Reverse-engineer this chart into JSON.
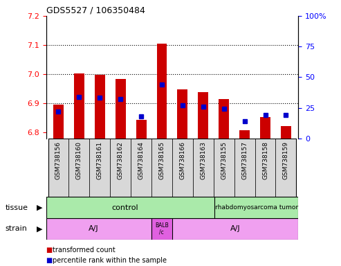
{
  "title": "GDS5527 / 106350484",
  "samples": [
    "GSM738156",
    "GSM738160",
    "GSM738161",
    "GSM738162",
    "GSM738164",
    "GSM738165",
    "GSM738166",
    "GSM738163",
    "GSM738155",
    "GSM738157",
    "GSM738158",
    "GSM738159"
  ],
  "red_values": [
    6.895,
    7.003,
    6.997,
    6.984,
    6.843,
    7.105,
    6.948,
    6.938,
    6.915,
    6.808,
    6.853,
    6.823
  ],
  "blue_values": [
    22,
    34,
    33,
    32,
    18,
    44,
    27,
    26,
    24,
    14,
    19,
    19
  ],
  "ylim_left": [
    6.78,
    7.2
  ],
  "ylim_right": [
    0,
    100
  ],
  "yticks_left": [
    6.8,
    6.9,
    7.0,
    7.1,
    7.2
  ],
  "yticks_right": [
    0,
    25,
    50,
    75,
    100
  ],
  "red_color": "#cc0000",
  "blue_color": "#0000cc",
  "bg_color": "#d8d8d8",
  "tissue_control_color": "#aaeaaa",
  "tissue_rhabdo_color": "#aaeaaa",
  "strain_aj_color": "#f0a0f0",
  "strain_balb_color": "#e060e0",
  "legend_red": "transformed count",
  "legend_blue": "percentile rank within the sample"
}
